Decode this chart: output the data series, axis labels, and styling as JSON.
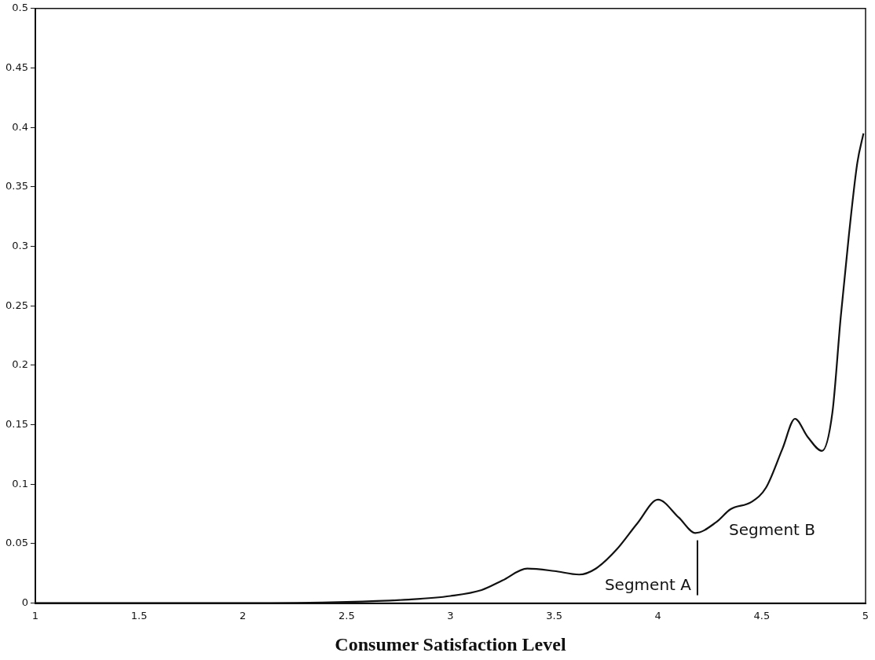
{
  "chart_data": {
    "type": "line",
    "xlabel": "Consumer Satisfaction Level",
    "x": [
      1,
      1.5,
      2,
      2.5,
      2.8,
      3.0,
      3.15,
      3.25,
      3.37,
      3.5,
      3.62,
      3.7,
      3.8,
      3.9,
      4.0,
      4.1,
      4.18,
      4.28,
      4.35,
      4.45,
      4.52,
      4.6,
      4.66,
      4.72,
      4.79,
      4.84,
      4.88,
      4.92,
      4.96,
      4.99
    ],
    "series": [
      {
        "color": "#111111",
        "values": [
          0,
          0,
          0,
          0.001,
          0.003,
          0.006,
          0.011,
          0.019,
          0.029,
          0.027,
          0.024,
          0.029,
          0.045,
          0.067,
          0.087,
          0.072,
          0.059,
          0.068,
          0.079,
          0.085,
          0.097,
          0.13,
          0.155,
          0.14,
          0.128,
          0.16,
          0.24,
          0.31,
          0.37,
          0.395
        ]
      }
    ],
    "xlim": [
      1,
      5
    ],
    "xticks": [
      1,
      1.5,
      2,
      2.5,
      3,
      3.5,
      4,
      4.5,
      5
    ],
    "ylim": [
      0,
      0.5
    ],
    "yticks": [
      0,
      0.05,
      0.1,
      0.15,
      0.2,
      0.25,
      0.3,
      0.35,
      0.4,
      0.45,
      0.5
    ],
    "ref_lines": [
      {
        "axis": "x",
        "value": 4.19,
        "label": null
      }
    ],
    "annotations": [
      "Segment A",
      "Segment B"
    ],
    "grid": false,
    "legend": false,
    "marker": "none",
    "line_style": "solid"
  }
}
